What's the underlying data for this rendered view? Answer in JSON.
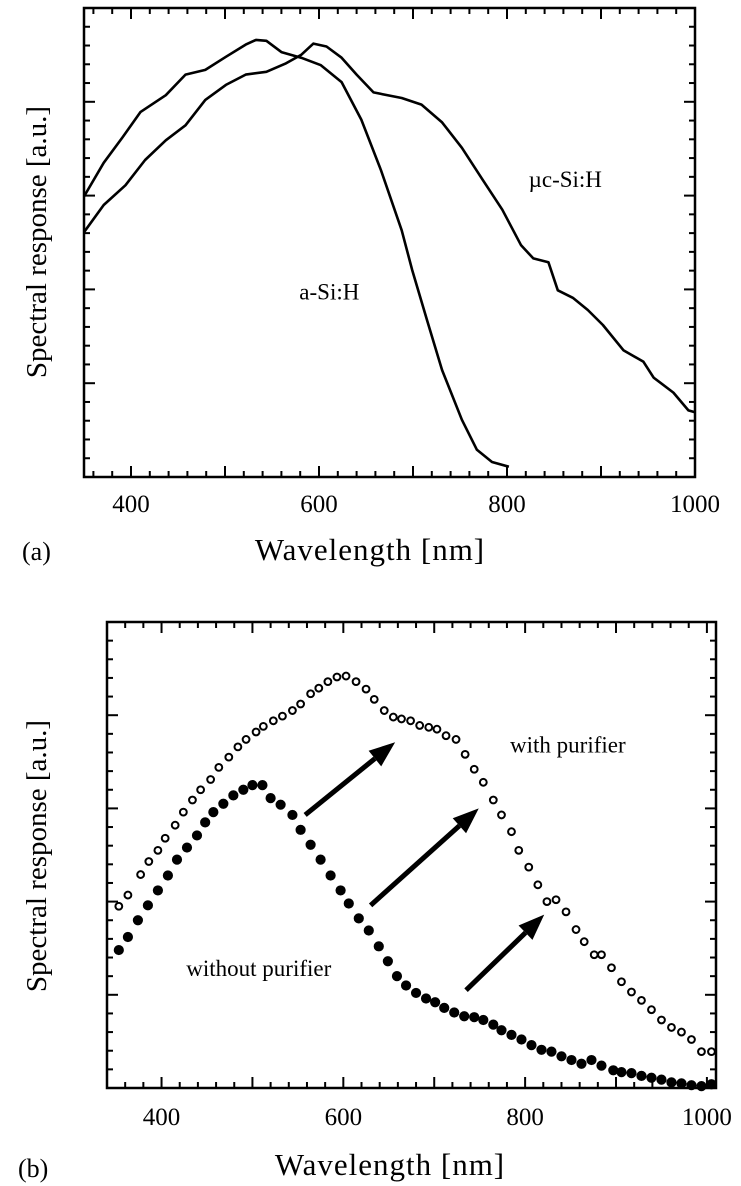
{
  "chart_data": [
    {
      "panel_label": "(a)",
      "type": "line",
      "xlabel": "Wavelength  [nm]",
      "ylabel": "Spectral response [a.u.]",
      "xlim": [
        350,
        1000
      ],
      "ylim": [
        0,
        5
      ],
      "x_ticks": [
        400,
        600,
        800,
        1000
      ],
      "y_tick_labels": false,
      "grid": false,
      "series": [
        {
          "name": "a-Si:H",
          "color": "#000000",
          "x": [
            350,
            371,
            391,
            410,
            437,
            458,
            479,
            501,
            522,
            533,
            544,
            560,
            581,
            602,
            624,
            645,
            666,
            688,
            699,
            715,
            731,
            752,
            768,
            784,
            802
          ],
          "y": [
            2.99,
            3.35,
            3.62,
            3.89,
            4.07,
            4.29,
            4.34,
            4.48,
            4.61,
            4.66,
            4.65,
            4.53,
            4.47,
            4.39,
            4.21,
            3.81,
            3.27,
            2.63,
            2.21,
            1.67,
            1.14,
            0.61,
            0.29,
            0.16,
            0.11
          ]
        },
        {
          "name": "µc-Si:H",
          "color": "#000000",
          "x": [
            350,
            371,
            394,
            415,
            437,
            458,
            479,
            501,
            522,
            544,
            565,
            581,
            594,
            608,
            624,
            640,
            658,
            688,
            709,
            731,
            752,
            774,
            795,
            815,
            828,
            844,
            854,
            870,
            886,
            902,
            924,
            945,
            956,
            977,
            993,
            1000
          ],
          "y": [
            2.61,
            2.9,
            3.11,
            3.38,
            3.59,
            3.75,
            4.02,
            4.18,
            4.29,
            4.32,
            4.41,
            4.5,
            4.62,
            4.59,
            4.47,
            4.29,
            4.1,
            4.04,
            3.97,
            3.78,
            3.51,
            3.17,
            2.85,
            2.47,
            2.33,
            2.29,
            1.99,
            1.91,
            1.78,
            1.62,
            1.35,
            1.23,
            1.06,
            0.9,
            0.71,
            0.69
          ]
        }
      ],
      "annotations": [
        {
          "text": "a-Si:H",
          "x": 611,
          "y": 1.89
        },
        {
          "text": "µc-Si:H",
          "x": 862,
          "y": 3.09
        }
      ]
    },
    {
      "panel_label": "(b)",
      "type": "scatter",
      "xlabel": "Wavelength [nm]",
      "ylabel": "Spectral response [a.u.]",
      "xlim": [
        340,
        1010
      ],
      "ylim": [
        0,
        5
      ],
      "x_ticks": [
        400,
        600,
        800,
        1000
      ],
      "y_tick_labels": false,
      "grid": false,
      "series": [
        {
          "name": "with purifier",
          "marker": "open-circle",
          "color": "#000000",
          "x": [
            353,
            363,
            377,
            386,
            396,
            404,
            415,
            424,
            434,
            443,
            454,
            463,
            474,
            484,
            493,
            504,
            512,
            523,
            533,
            544,
            553,
            564,
            573,
            583,
            593,
            603,
            614,
            625,
            634,
            645,
            655,
            664,
            674,
            684,
            694,
            703,
            713,
            724,
            734,
            744,
            754,
            765,
            774,
            785,
            793,
            804,
            814,
            824,
            834,
            845,
            856,
            865,
            876,
            884,
            895,
            906,
            917,
            928,
            939,
            950,
            961,
            972,
            983,
            994,
            1005
          ],
          "y": [
            1.95,
            2.07,
            2.29,
            2.43,
            2.55,
            2.68,
            2.82,
            2.96,
            3.09,
            3.2,
            3.31,
            3.44,
            3.55,
            3.66,
            3.74,
            3.82,
            3.88,
            3.94,
            3.99,
            4.05,
            4.12,
            4.23,
            4.29,
            4.36,
            4.41,
            4.42,
            4.36,
            4.28,
            4.17,
            4.05,
            3.98,
            3.96,
            3.94,
            3.89,
            3.87,
            3.85,
            3.78,
            3.74,
            3.58,
            3.42,
            3.28,
            3.09,
            2.93,
            2.75,
            2.55,
            2.37,
            2.18,
            2.0,
            2.02,
            1.89,
            1.7,
            1.57,
            1.43,
            1.43,
            1.29,
            1.14,
            1.03,
            0.94,
            0.84,
            0.73,
            0.65,
            0.6,
            0.52,
            0.39,
            0.39
          ]
        },
        {
          "name": "without purifier",
          "marker": "filled-circle",
          "color": "#000000",
          "x": [
            353,
            363,
            374,
            385,
            396,
            407,
            417,
            428,
            439,
            448,
            457,
            468,
            479,
            490,
            500,
            511,
            520,
            531,
            544,
            553,
            564,
            575,
            586,
            597,
            606,
            617,
            628,
            639,
            649,
            659,
            669,
            680,
            691,
            701,
            711,
            722,
            733,
            744,
            754,
            765,
            774,
            785,
            796,
            807,
            818,
            829,
            840,
            851,
            862,
            873,
            884,
            897,
            906,
            917,
            928,
            939,
            950,
            961,
            972,
            983,
            994,
            1005
          ],
          "y": [
            1.48,
            1.62,
            1.8,
            1.96,
            2.12,
            2.28,
            2.45,
            2.58,
            2.71,
            2.85,
            2.96,
            3.05,
            3.14,
            3.2,
            3.25,
            3.25,
            3.11,
            3.04,
            2.93,
            2.77,
            2.61,
            2.45,
            2.28,
            2.12,
            1.98,
            1.82,
            1.69,
            1.52,
            1.36,
            1.2,
            1.1,
            1.02,
            0.96,
            0.92,
            0.86,
            0.81,
            0.77,
            0.76,
            0.73,
            0.68,
            0.62,
            0.57,
            0.52,
            0.46,
            0.41,
            0.39,
            0.34,
            0.3,
            0.26,
            0.3,
            0.24,
            0.19,
            0.17,
            0.16,
            0.13,
            0.11,
            0.09,
            0.06,
            0.05,
            0.03,
            0.02,
            0.04
          ]
        }
      ],
      "annotations": [
        {
          "text": "with purifier",
          "x": 847,
          "y": 3.6
        },
        {
          "text": "without purifier",
          "x": 507,
          "y": 1.2
        }
      ],
      "arrows": [
        {
          "from": [
            558,
            2.93
          ],
          "to": [
            657,
            3.71
          ]
        },
        {
          "from": [
            630,
            1.96
          ],
          "to": [
            749,
            3.0
          ]
        },
        {
          "from": [
            735,
            1.05
          ],
          "to": [
            821,
            1.86
          ]
        }
      ]
    }
  ]
}
